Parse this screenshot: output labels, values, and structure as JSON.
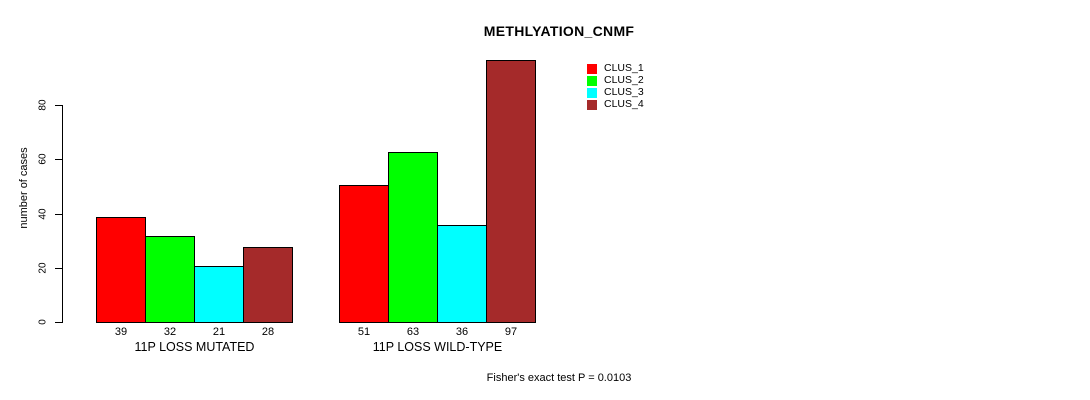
{
  "chart_data": {
    "type": "bar",
    "title": "METHLYATION_CNMF",
    "ylabel": "number of cases",
    "xlabel": "",
    "yticks": [
      0,
      20,
      40,
      60,
      80
    ],
    "ylim": [
      0,
      97
    ],
    "grid": false,
    "legend_position": "top-right",
    "series": [
      {
        "name": "CLUS_1",
        "color": "#FF0000"
      },
      {
        "name": "CLUS_2",
        "color": "#00FF00"
      },
      {
        "name": "CLUS_3",
        "color": "#00FFFF"
      },
      {
        "name": "CLUS_4",
        "color": "#A52A2A"
      }
    ],
    "categories": [
      "11P LOSS MUTATED",
      "11P LOSS WILD-TYPE"
    ],
    "groups": [
      {
        "label": "11P LOSS MUTATED",
        "values": [
          39,
          32,
          21,
          28
        ]
      },
      {
        "label": "11P LOSS WILD-TYPE",
        "values": [
          51,
          63,
          36,
          97
        ]
      }
    ],
    "bar_border_color": "#000000",
    "axis_color": "#000000",
    "footnote": "Fisher's exact test P = 0.0103"
  }
}
